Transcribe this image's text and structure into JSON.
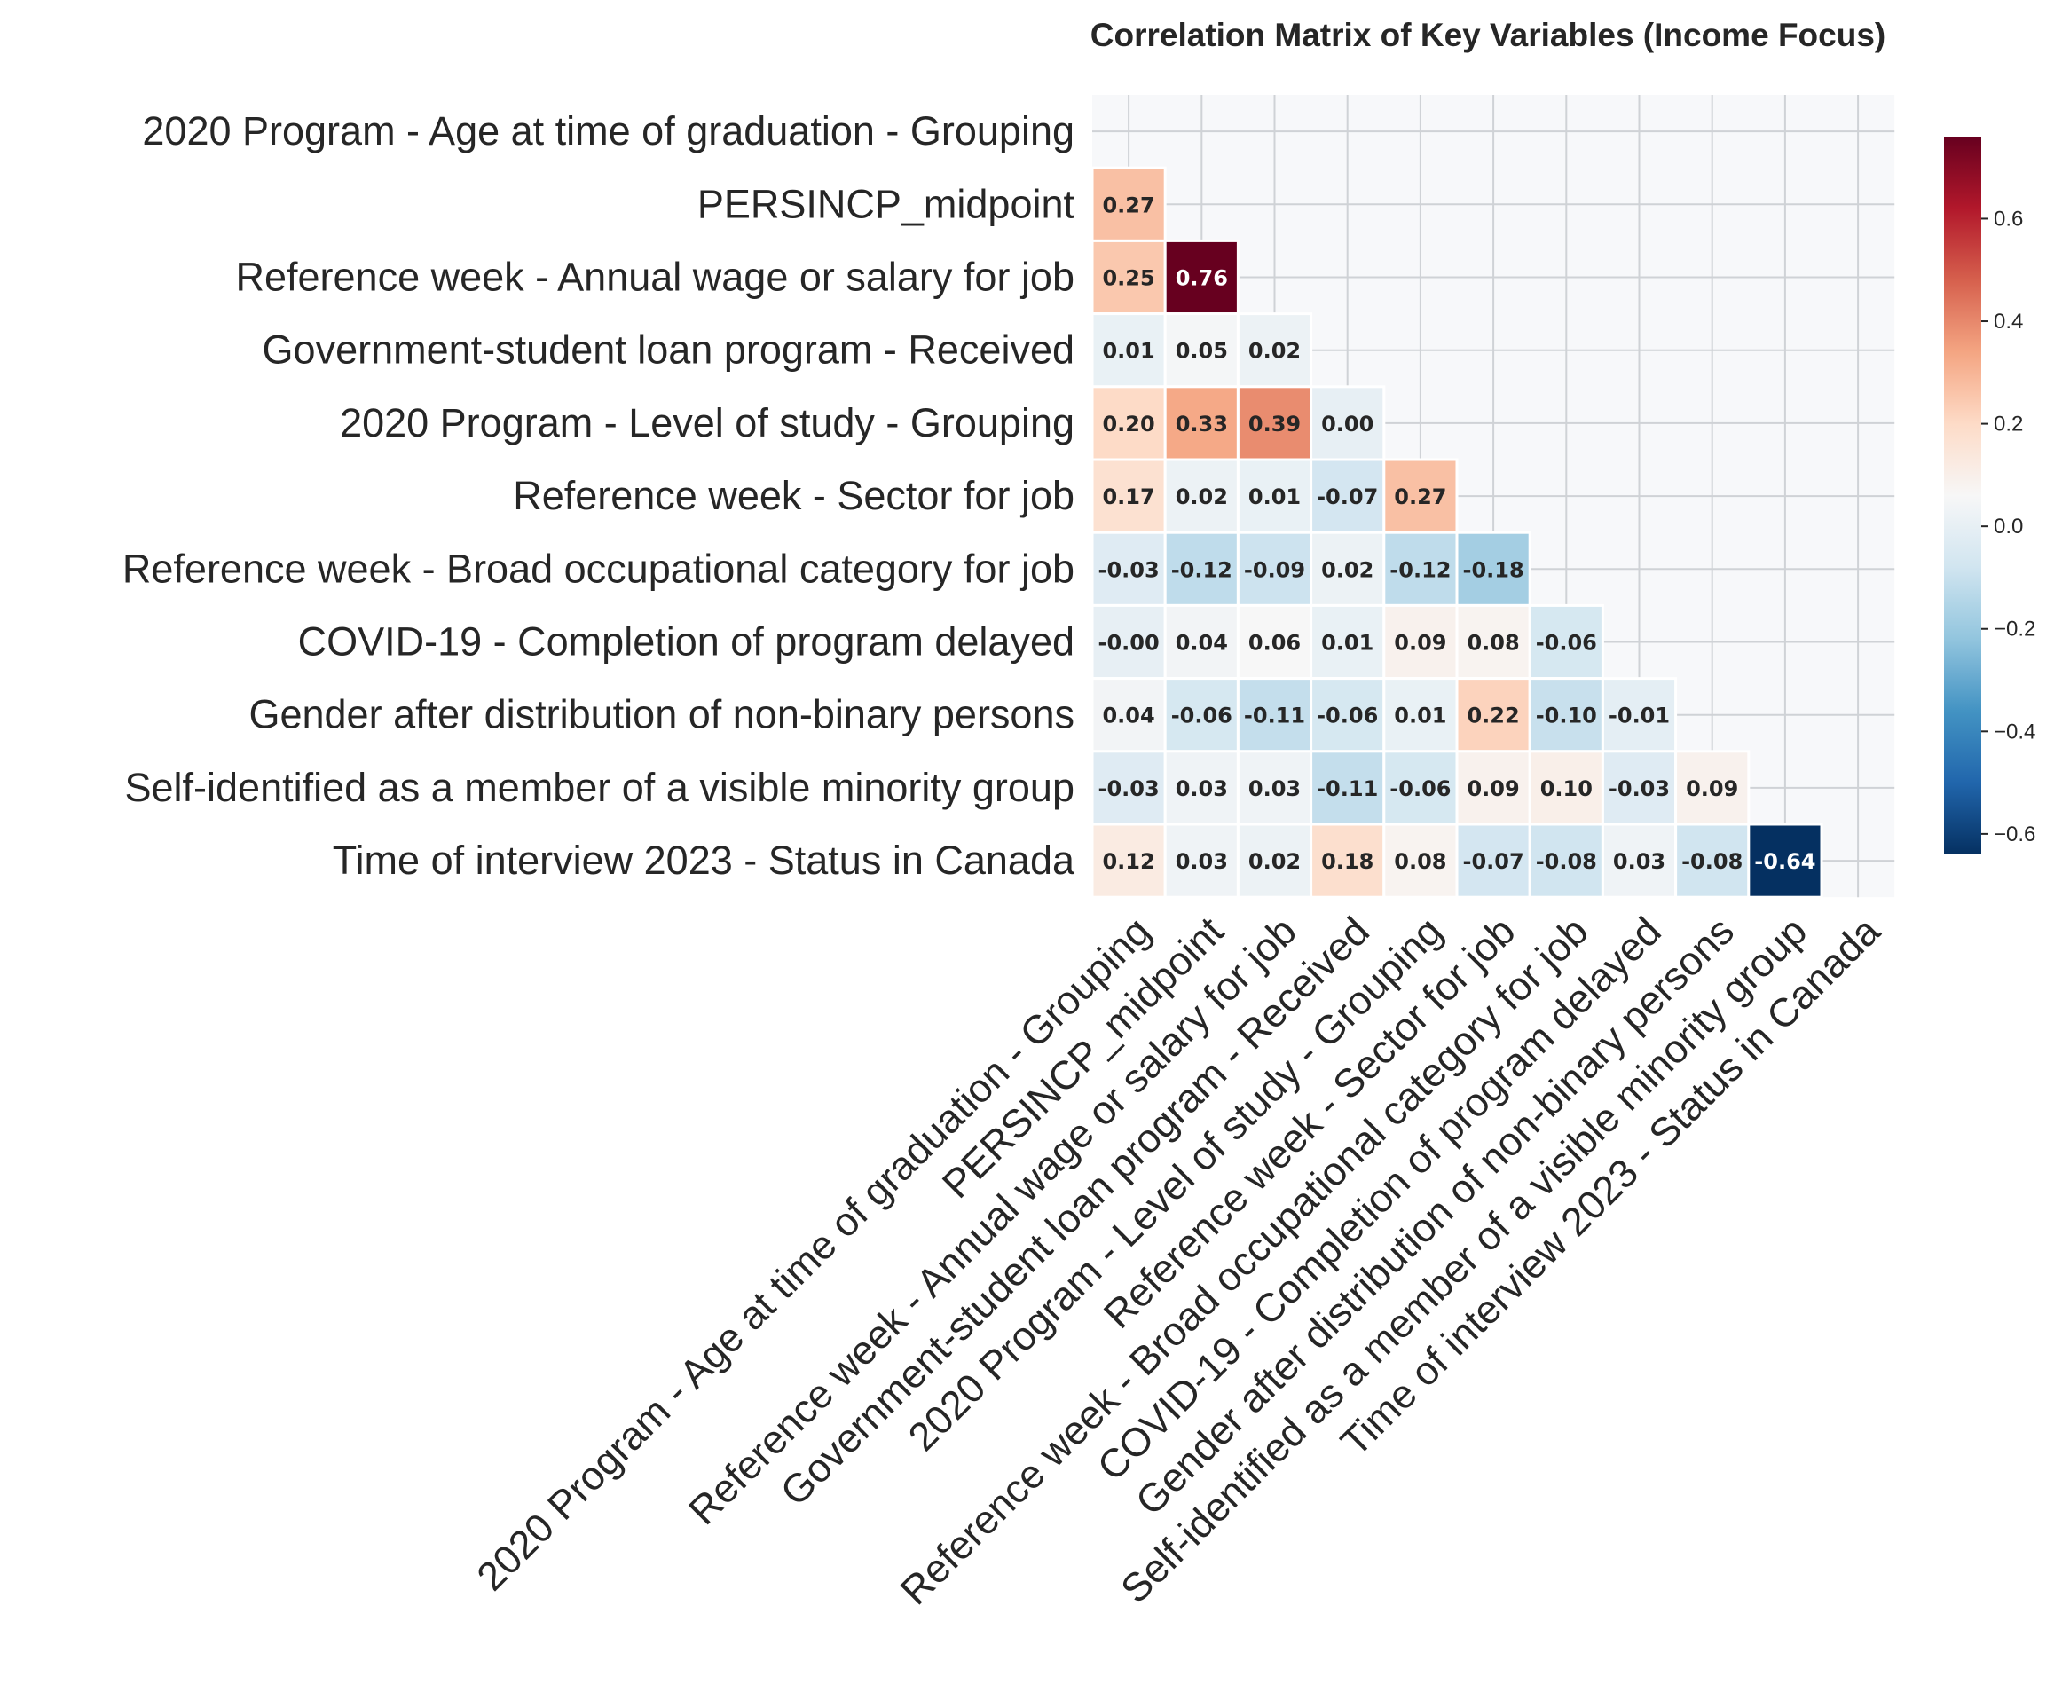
{
  "chart_data": {
    "type": "heatmap",
    "title": "Correlation Matrix of Key Variables (Income Focus)",
    "variables": [
      "2020 Program - Age at time of graduation - Grouping",
      "PERSINCP_midpoint",
      "Reference week - Annual wage or salary for job",
      "Government-student loan program - Received",
      "2020 Program - Level of study - Grouping",
      "Reference week - Sector for job",
      "Reference week - Broad occupational category for job",
      "COVID-19 - Completion of program delayed",
      "Gender after distribution of non-binary persons",
      "Self-identified as a member of a visible minority group",
      "Time of interview 2023 - Status in Canada"
    ],
    "mask": "upper-triangle-including-diagonal",
    "values": [
      [],
      [
        0.27
      ],
      [
        0.25,
        0.76
      ],
      [
        0.01,
        0.05,
        0.02
      ],
      [
        0.2,
        0.33,
        0.39,
        0.0
      ],
      [
        0.17,
        0.02,
        0.01,
        -0.07,
        0.27
      ],
      [
        -0.03,
        -0.12,
        -0.09,
        0.02,
        -0.12,
        -0.18
      ],
      [
        -0.0,
        0.04,
        0.06,
        0.01,
        0.09,
        0.08,
        -0.06
      ],
      [
        0.04,
        -0.06,
        -0.11,
        -0.06,
        0.01,
        0.22,
        -0.1,
        -0.01
      ],
      [
        -0.03,
        0.03,
        0.03,
        -0.11,
        -0.06,
        0.09,
        0.1,
        -0.03,
        0.09
      ],
      [
        0.12,
        0.03,
        0.02,
        0.18,
        0.08,
        -0.07,
        -0.08,
        0.03,
        -0.08,
        -0.64
      ]
    ],
    "value_labels": [
      [],
      [
        "0.27"
      ],
      [
        "0.25",
        "0.76"
      ],
      [
        "0.01",
        "0.05",
        "0.02"
      ],
      [
        "0.20",
        "0.33",
        "0.39",
        "0.00"
      ],
      [
        "0.17",
        "0.02",
        "0.01",
        "-0.07",
        "0.27"
      ],
      [
        "-0.03",
        "-0.12",
        "-0.09",
        "0.02",
        "-0.12",
        "-0.18"
      ],
      [
        "-0.00",
        "0.04",
        "0.06",
        "0.01",
        "0.09",
        "0.08",
        "-0.06"
      ],
      [
        "0.04",
        "-0.06",
        "-0.11",
        "-0.06",
        "0.01",
        "0.22",
        "-0.10",
        "-0.01"
      ],
      [
        "-0.03",
        "0.03",
        "0.03",
        "-0.11",
        "-0.06",
        "0.09",
        "0.10",
        "-0.03",
        "0.09"
      ],
      [
        "0.12",
        "0.03",
        "0.02",
        "0.18",
        "0.08",
        "-0.07",
        "-0.08",
        "0.03",
        "-0.08",
        "-0.64"
      ]
    ],
    "colormap": "RdBu_r",
    "vmin": -0.64,
    "vmax": 0.76,
    "colorbar_ticks": [
      -0.6,
      -0.4,
      -0.2,
      0.0,
      0.2,
      0.4,
      0.6
    ],
    "colorbar_tick_labels": [
      "−0.6",
      "−0.4",
      "−0.2",
      "0.0",
      "0.2",
      "0.4",
      "0.6"
    ],
    "grid": true,
    "colors": {
      "background": "#f7f8fa",
      "grid_line": "#cfd2d6",
      "cell_border": "#ffffff",
      "text_dark": "#262626",
      "text_light": "#ffffff"
    }
  }
}
